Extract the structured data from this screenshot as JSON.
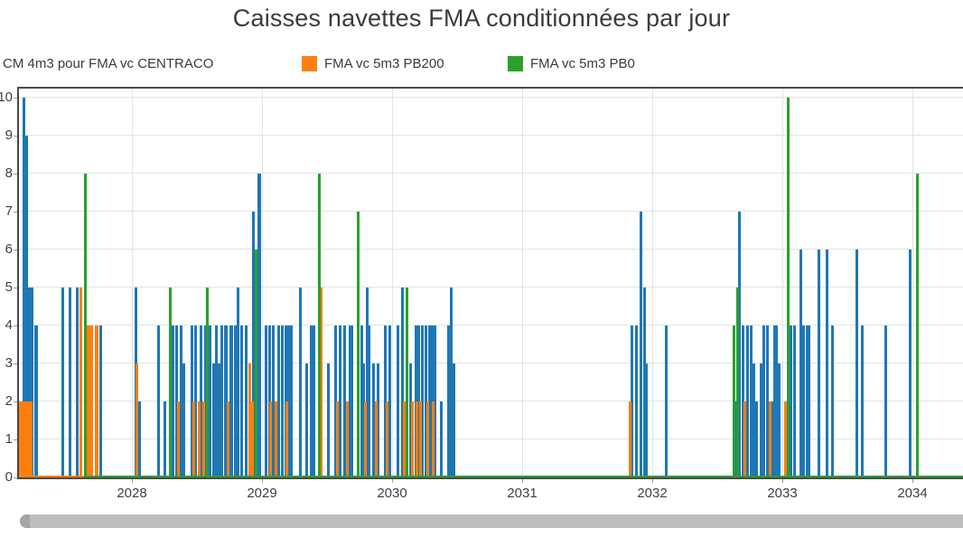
{
  "title": "Caisses navettes FMA conditionnées par jour",
  "legend": {
    "items": [
      {
        "label": "CM 4m3 pour FMA vc CENTRACO",
        "color": "#1f77b4",
        "swatch_visible": false
      },
      {
        "label": "FMA vc 5m3 PB200",
        "color": "#ff7f0e",
        "swatch_visible": true
      },
      {
        "label": "FMA vc 5m3 PB0",
        "color": "#2ca02c",
        "swatch_visible": true
      }
    ]
  },
  "chart_data": {
    "type": "bar",
    "title": "Caisses navettes FMA conditionnées par jour",
    "xlabel": "",
    "ylabel": "",
    "x_axis": {
      "tick_labels": [
        "2028",
        "2029",
        "2030",
        "2031",
        "2032",
        "2033",
        "2034"
      ],
      "ticks": [
        2028,
        2029,
        2030,
        2031,
        2032,
        2033,
        2034
      ],
      "range_years": [
        2027.13,
        2034.4
      ],
      "gridlines": true
    },
    "y_axis": {
      "tick_labels": [
        "0",
        "1",
        "2",
        "3",
        "4",
        "5",
        "6",
        "7",
        "8",
        "9",
        "10"
      ],
      "ticks": [
        0,
        1,
        2,
        3,
        4,
        5,
        6,
        7,
        8,
        9,
        10
      ],
      "ylim": [
        0,
        10
      ],
      "gridlines": true
    },
    "series": [
      {
        "name": "CM 4m3 pour FMA vc CENTRACO",
        "color": "#1f77b4"
      },
      {
        "name": "FMA vc 5m3 PB200",
        "color": "#ff7f0e"
      },
      {
        "name": "FMA vc 5m3 PB0",
        "color": "#2ca02c"
      }
    ],
    "bars_format": "[year, series_index, value, optional_width_px]",
    "bars": [
      [
        2027.146,
        1,
        2,
        26
      ],
      [
        2027.167,
        0,
        10,
        3
      ],
      [
        2027.188,
        0,
        9,
        3
      ],
      [
        2027.215,
        0,
        5,
        8
      ],
      [
        2027.264,
        0,
        4,
        4
      ],
      [
        2027.472,
        0,
        5
      ],
      [
        2027.521,
        0,
        5
      ],
      [
        2027.583,
        0,
        5
      ],
      [
        2027.611,
        1,
        5
      ],
      [
        2027.639,
        2,
        8
      ],
      [
        2027.667,
        1,
        4,
        10
      ],
      [
        2027.729,
        1,
        4,
        4
      ],
      [
        2027.757,
        0,
        4
      ],
      [
        2028.028,
        0,
        5
      ],
      [
        2028.038,
        1,
        3
      ],
      [
        2028.056,
        0,
        2
      ],
      [
        2028.208,
        0,
        4
      ],
      [
        2028.25,
        0,
        2
      ],
      [
        2028.292,
        2,
        5
      ],
      [
        2028.319,
        0,
        4
      ],
      [
        2028.347,
        0,
        4
      ],
      [
        2028.361,
        1,
        2
      ],
      [
        2028.375,
        0,
        4
      ],
      [
        2028.396,
        0,
        3
      ],
      [
        2028.465,
        0,
        4
      ],
      [
        2028.479,
        1,
        2
      ],
      [
        2028.493,
        0,
        4
      ],
      [
        2028.514,
        1,
        2
      ],
      [
        2028.528,
        0,
        4
      ],
      [
        2028.549,
        1,
        2
      ],
      [
        2028.563,
        0,
        4
      ],
      [
        2028.583,
        2,
        5
      ],
      [
        2028.604,
        0,
        4
      ],
      [
        2028.625,
        0,
        3
      ],
      [
        2028.646,
        0,
        4
      ],
      [
        2028.667,
        0,
        3
      ],
      [
        2028.688,
        0,
        4
      ],
      [
        2028.722,
        0,
        4,
        4
      ],
      [
        2028.743,
        1,
        2
      ],
      [
        2028.764,
        0,
        4,
        4
      ],
      [
        2028.792,
        0,
        4
      ],
      [
        2028.813,
        0,
        5
      ],
      [
        2028.847,
        0,
        4
      ],
      [
        2028.875,
        0,
        4
      ],
      [
        2028.903,
        1,
        3
      ],
      [
        2028.924,
        1,
        2
      ],
      [
        2028.931,
        0,
        7
      ],
      [
        2028.958,
        2,
        6
      ],
      [
        2028.979,
        0,
        8,
        4
      ],
      [
        2029.028,
        0,
        4
      ],
      [
        2029.056,
        0,
        4
      ],
      [
        2029.069,
        1,
        2
      ],
      [
        2029.09,
        0,
        4
      ],
      [
        2029.111,
        1,
        2
      ],
      [
        2029.125,
        0,
        4
      ],
      [
        2029.153,
        0,
        4
      ],
      [
        2029.181,
        0,
        4
      ],
      [
        2029.194,
        1,
        2
      ],
      [
        2029.208,
        0,
        4
      ],
      [
        2029.229,
        0,
        4
      ],
      [
        2029.292,
        0,
        5
      ],
      [
        2029.347,
        0,
        3
      ],
      [
        2029.375,
        0,
        4
      ],
      [
        2029.396,
        0,
        4
      ],
      [
        2029.438,
        2,
        8
      ],
      [
        2029.458,
        1,
        5
      ],
      [
        2029.507,
        0,
        3
      ],
      [
        2029.569,
        0,
        4
      ],
      [
        2029.583,
        1,
        2
      ],
      [
        2029.604,
        0,
        4
      ],
      [
        2029.632,
        0,
        4
      ],
      [
        2029.653,
        1,
        2
      ],
      [
        2029.674,
        0,
        4
      ],
      [
        2029.694,
        0,
        4
      ],
      [
        2029.743,
        2,
        7
      ],
      [
        2029.764,
        0,
        4
      ],
      [
        2029.778,
        0,
        3
      ],
      [
        2029.792,
        1,
        2
      ],
      [
        2029.806,
        0,
        5
      ],
      [
        2029.826,
        0,
        4
      ],
      [
        2029.861,
        0,
        3
      ],
      [
        2029.875,
        1,
        2
      ],
      [
        2029.889,
        0,
        3
      ],
      [
        2029.951,
        0,
        4
      ],
      [
        2029.965,
        1,
        2
      ],
      [
        2029.986,
        0,
        4
      ],
      [
        2030.042,
        0,
        4
      ],
      [
        2030.083,
        0,
        5
      ],
      [
        2030.097,
        1,
        2
      ],
      [
        2030.118,
        2,
        5
      ],
      [
        2030.139,
        0,
        3
      ],
      [
        2030.153,
        1,
        2
      ],
      [
        2030.181,
        0,
        4
      ],
      [
        2030.194,
        1,
        2
      ],
      [
        2030.208,
        0,
        4
      ],
      [
        2030.222,
        1,
        2
      ],
      [
        2030.236,
        0,
        4
      ],
      [
        2030.257,
        0,
        4
      ],
      [
        2030.271,
        1,
        2
      ],
      [
        2030.285,
        0,
        4
      ],
      [
        2030.306,
        0,
        4
      ],
      [
        2030.319,
        1,
        2
      ],
      [
        2030.333,
        0,
        4
      ],
      [
        2030.375,
        0,
        2
      ],
      [
        2030.431,
        0,
        4
      ],
      [
        2030.458,
        0,
        5
      ],
      [
        2030.479,
        0,
        3
      ],
      [
        2031.833,
        1,
        2
      ],
      [
        2031.847,
        0,
        4
      ],
      [
        2031.875,
        0,
        4
      ],
      [
        2031.91,
        0,
        7
      ],
      [
        2031.938,
        0,
        5
      ],
      [
        2031.958,
        0,
        3
      ],
      [
        2032.111,
        0,
        4
      ],
      [
        2032.625,
        2,
        4
      ],
      [
        2032.639,
        0,
        2
      ],
      [
        2032.653,
        2,
        5
      ],
      [
        2032.667,
        0,
        7
      ],
      [
        2032.701,
        0,
        4
      ],
      [
        2032.715,
        1,
        2
      ],
      [
        2032.736,
        0,
        4
      ],
      [
        2032.757,
        0,
        4
      ],
      [
        2032.778,
        0,
        3
      ],
      [
        2032.799,
        0,
        2
      ],
      [
        2032.84,
        0,
        3
      ],
      [
        2032.861,
        0,
        4
      ],
      [
        2032.882,
        0,
        4
      ],
      [
        2032.903,
        1,
        2
      ],
      [
        2032.917,
        0,
        2
      ],
      [
        2032.938,
        0,
        4
      ],
      [
        2032.958,
        0,
        4
      ],
      [
        2032.979,
        0,
        3
      ],
      [
        2033.021,
        1,
        2
      ],
      [
        2033.042,
        2,
        10
      ],
      [
        2033.069,
        0,
        4
      ],
      [
        2033.097,
        0,
        4
      ],
      [
        2033.139,
        0,
        6
      ],
      [
        2033.16,
        0,
        4
      ],
      [
        2033.188,
        0,
        4
      ],
      [
        2033.208,
        0,
        4
      ],
      [
        2033.278,
        0,
        6
      ],
      [
        2033.347,
        0,
        6
      ],
      [
        2033.382,
        0,
        4
      ],
      [
        2033.576,
        0,
        6
      ],
      [
        2033.618,
        0,
        4
      ],
      [
        2033.792,
        0,
        4
      ],
      [
        2033.986,
        0,
        6
      ],
      [
        2034.035,
        2,
        8
      ]
    ],
    "baselines": [
      {
        "series": 1,
        "from": 2027.13,
        "to": 2027.76
      },
      {
        "series": 2,
        "from": 2027.635,
        "to": 2034.4
      }
    ],
    "legend_position": "top"
  },
  "scrollbar": {
    "present": true,
    "orientation": "horizontal"
  }
}
